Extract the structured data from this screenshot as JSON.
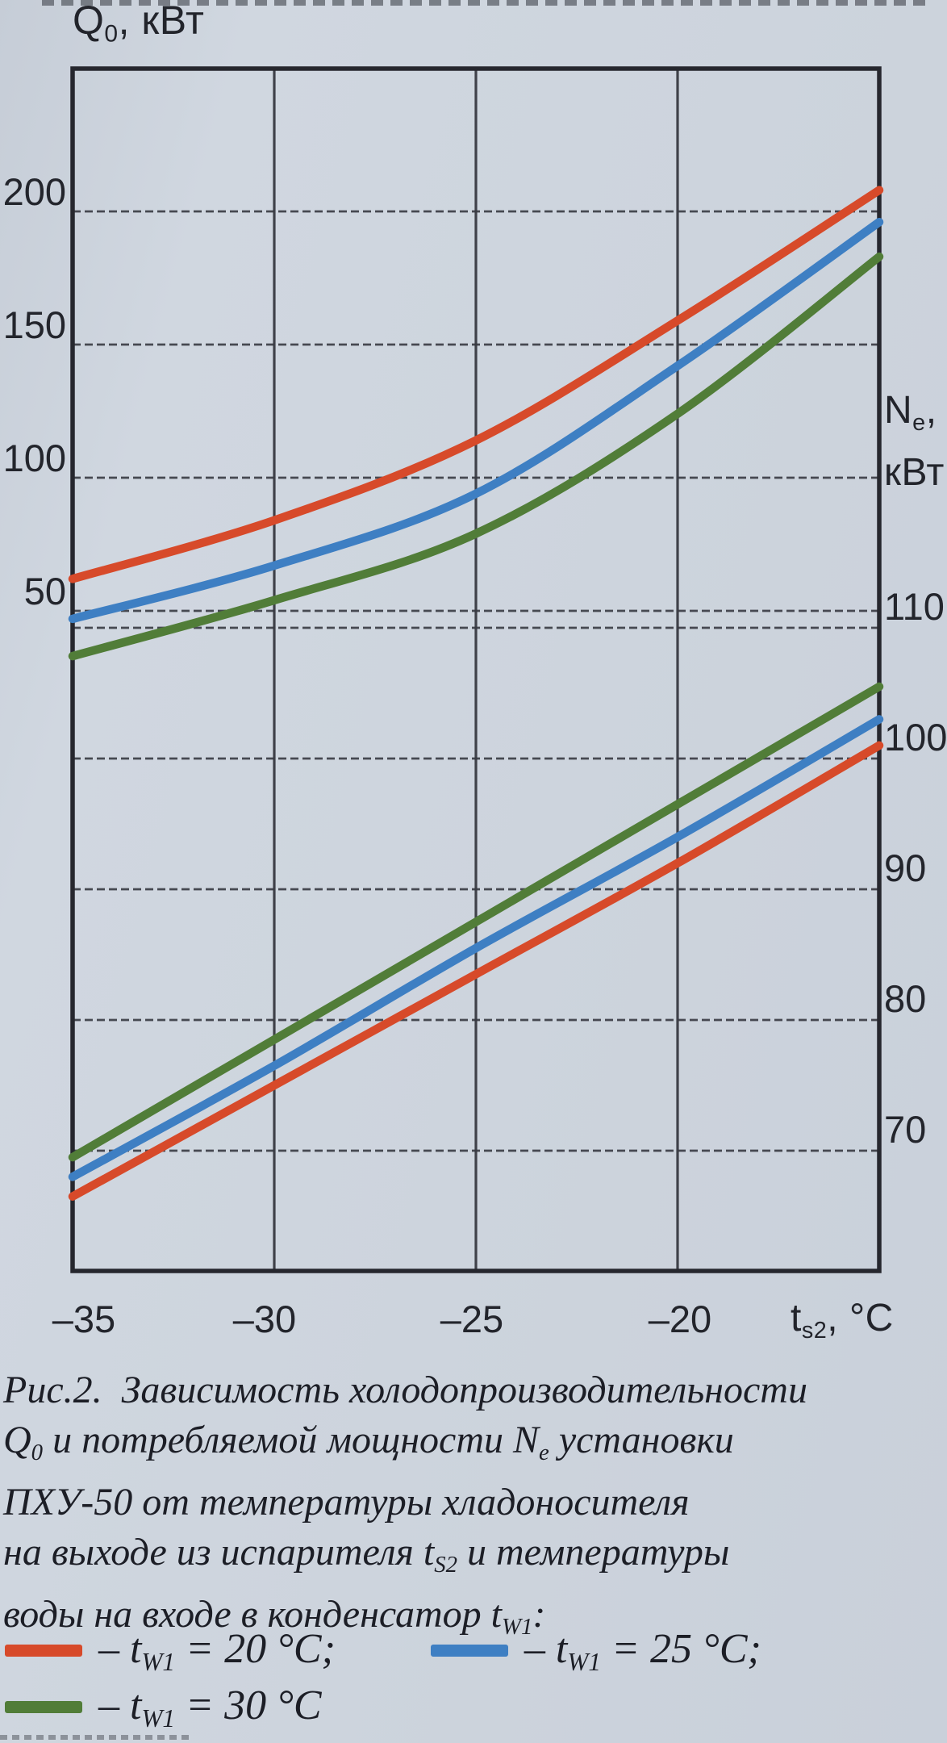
{
  "page": {
    "background": "#cdd4dd"
  },
  "colors": {
    "red": "#d74a2a",
    "blue": "#3e7fc3",
    "green": "#517d38",
    "grid": "#383a42",
    "border": "#26272e",
    "text": "#23252c"
  },
  "chart_data": {
    "type": "line",
    "x": [
      -35,
      -30,
      -25,
      -20,
      -15
    ],
    "x_range": [
      -35,
      -15
    ],
    "x_axis": {
      "title_text": "ts2, °C",
      "title_segments": [
        {
          "t": "t"
        },
        {
          "s": "s2"
        },
        {
          "t": ", °C"
        }
      ],
      "tick_values": [
        -35,
        -30,
        -25,
        -20
      ],
      "tick_labels": [
        "–35",
        "–30",
        "–25",
        "–20"
      ],
      "gridline_values": [
        -30,
        -25,
        -20
      ]
    },
    "left_axis": {
      "title_text": "Q0, кВт",
      "title_segments": [
        {
          "t": "Q"
        },
        {
          "s": "0"
        },
        {
          "t": ", кВт"
        }
      ],
      "tick_values": [
        200,
        150,
        100,
        50
      ],
      "tick_labels": [
        "200",
        "150",
        "100",
        "50"
      ]
    },
    "right_axis": {
      "title_text": "Ne, кВт",
      "title_line1_segments": [
        {
          "t": "N"
        },
        {
          "s": "e"
        },
        {
          "t": ","
        }
      ],
      "title_line2": "кВт",
      "tick_values": [
        110,
        100,
        90,
        80,
        70
      ],
      "tick_labels": [
        "110",
        "100",
        "90",
        "80",
        "70"
      ]
    },
    "grid": true,
    "series": [
      {
        "name": "Q0 при tW1=20°C",
        "axis": "left",
        "color": "#d74a2a",
        "values": [
          62,
          84,
          114,
          159,
          208
        ]
      },
      {
        "name": "Q0 при tW1=25°C",
        "axis": "left",
        "color": "#3e7fc3",
        "values": [
          47,
          67,
          94,
          142,
          196
        ]
      },
      {
        "name": "Q0 при tW1=30°C",
        "axis": "left",
        "color": "#517d38",
        "values": [
          33,
          54,
          79,
          124,
          183
        ]
      },
      {
        "name": "Ne при tW1=20°C",
        "axis": "right",
        "color": "#d74a2a",
        "values": [
          66.5,
          75,
          83.5,
          92,
          101
        ]
      },
      {
        "name": "Ne при tW1=25°C",
        "axis": "right",
        "color": "#3e7fc3",
        "values": [
          68,
          76.5,
          85.5,
          94,
          103
        ]
      },
      {
        "name": "Ne при tW1=30°C",
        "axis": "right",
        "color": "#517d38",
        "values": [
          69.5,
          78.5,
          87.5,
          96.5,
          105.5
        ]
      }
    ]
  },
  "caption": {
    "lines": [
      [
        {
          "t": "Рис.2.  Зависимость холодопроизводительности"
        }
      ],
      [
        {
          "t": "Q"
        },
        {
          "s": "0"
        },
        {
          "t": " и потребляемой мощности N"
        },
        {
          "s": "e"
        },
        {
          "t": " установки"
        }
      ],
      [
        {
          "t": "ПХУ-50 от температуры хладоносителя"
        }
      ],
      [
        {
          "t": "на выходе из испарителя t"
        },
        {
          "s": "S2"
        },
        {
          "t": " и температуры"
        }
      ],
      [
        {
          "t": "воды на входе в конденсатор t"
        },
        {
          "s": "W1"
        },
        {
          "t": ":"
        }
      ]
    ]
  },
  "legend": {
    "items": [
      {
        "color": "#d74a2a",
        "segments": [
          {
            "t": "– t"
          },
          {
            "s": "W1"
          },
          {
            "t": " = 20 °C;"
          }
        ]
      },
      {
        "color": "#3e7fc3",
        "segments": [
          {
            "t": "– t"
          },
          {
            "s": "W1"
          },
          {
            "t": " = 25 °C;"
          }
        ]
      },
      {
        "color": "#517d38",
        "segments": [
          {
            "t": "– t"
          },
          {
            "s": "W1"
          },
          {
            "t": " = 30 °C"
          }
        ]
      }
    ]
  }
}
